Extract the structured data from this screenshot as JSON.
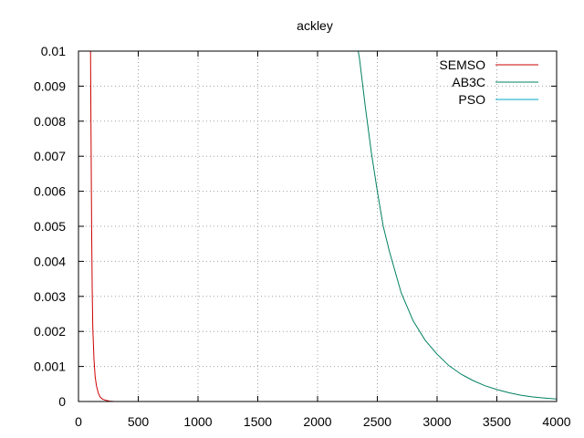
{
  "chart_data": {
    "type": "line",
    "title": "ackley",
    "xlabel": "",
    "ylabel": "",
    "xlim": [
      0,
      4000
    ],
    "ylim": [
      0,
      0.01
    ],
    "grid": true,
    "legend_position": "top-right",
    "x_ticks": [
      "0",
      "500",
      "1000",
      "1500",
      "2000",
      "2500",
      "3000",
      "3500",
      "4000"
    ],
    "y_ticks": [
      "0",
      "0.001",
      "0.002",
      "0.003",
      "0.004",
      "0.005",
      "0.006",
      "0.007",
      "0.008",
      "0.009",
      "0.01"
    ],
    "series": [
      {
        "name": "SEMSO",
        "color": "#cc0000",
        "x": [
          100,
          105,
          110,
          115,
          120,
          130,
          140,
          150,
          165,
          180,
          200,
          230,
          260,
          300
        ],
        "y": [
          0.0105,
          0.0075,
          0.005,
          0.0031,
          0.0021,
          0.0012,
          0.0007,
          0.00045,
          0.00025,
          0.00013,
          7e-05,
          3e-05,
          1e-05,
          0.0
        ]
      },
      {
        "name": "AB3C",
        "color": "#008060",
        "x": [
          2330,
          2350,
          2400,
          2450,
          2500,
          2550,
          2600,
          2650,
          2700,
          2800,
          2900,
          3000,
          3100,
          3200,
          3300,
          3400,
          3500,
          3600,
          3700,
          3800,
          3900,
          4000
        ],
        "y": [
          0.0102,
          0.0098,
          0.0084,
          0.0071,
          0.006,
          0.005,
          0.0043,
          0.0037,
          0.0031,
          0.0023,
          0.00175,
          0.00135,
          0.00102,
          0.00078,
          0.0006,
          0.00045,
          0.00034,
          0.00025,
          0.00018,
          0.00013,
          0.0001,
          7e-05
        ]
      },
      {
        "name": "PSO",
        "color": "#00a8c0",
        "x": [],
        "y": []
      }
    ]
  }
}
